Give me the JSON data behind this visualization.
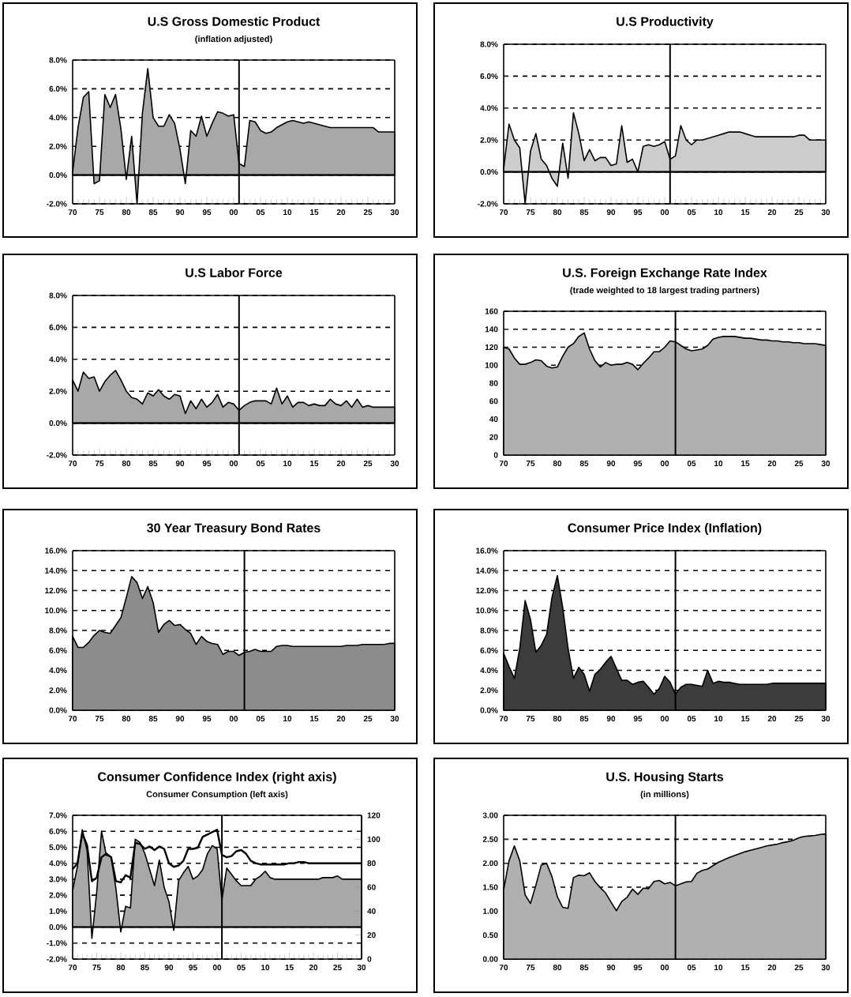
{
  "chart_data": [
    {
      "type": "area",
      "title": "U.S Gross Domestic Product",
      "subtitle": "(inflation adjusted)",
      "x": [
        1970,
        1971,
        1972,
        1973,
        1974,
        1975,
        1976,
        1977,
        1978,
        1979,
        1980,
        1981,
        1982,
        1983,
        1984,
        1985,
        1986,
        1987,
        1988,
        1989,
        1990,
        1991,
        1992,
        1993,
        1994,
        1995,
        1996,
        1997,
        1998,
        1999,
        2000,
        2001,
        2002,
        2003,
        2004,
        2005,
        2006,
        2007,
        2008,
        2009,
        2010,
        2011,
        2012,
        2013,
        2014,
        2015,
        2016,
        2017,
        2018,
        2019,
        2020,
        2021,
        2022,
        2023,
        2024,
        2025,
        2026,
        2027,
        2028,
        2029,
        2030
      ],
      "series": [
        {
          "color": "#a8a8a8",
          "values": [
            0.2,
            3.3,
            5.4,
            5.8,
            -0.6,
            -0.4,
            5.6,
            4.7,
            5.6,
            3.2,
            -0.3,
            2.7,
            -2.0,
            4.3,
            7.4,
            4.0,
            3.4,
            3.4,
            4.2,
            3.6,
            1.8,
            -0.6,
            3.1,
            2.7,
            4.1,
            2.7,
            3.6,
            4.4,
            4.3,
            4.1,
            4.2,
            0.8,
            0.6,
            3.8,
            3.7,
            3.1,
            2.9,
            3.0,
            3.3,
            3.5,
            3.7,
            3.8,
            3.7,
            3.6,
            3.7,
            3.6,
            3.5,
            3.4,
            3.3,
            3.3,
            3.3,
            3.3,
            3.3,
            3.3,
            3.3,
            3.3,
            3.3,
            3.0,
            3.0,
            3.0,
            3.0
          ]
        }
      ],
      "xlim": [
        1970,
        2030
      ],
      "ylim": [
        -2,
        8
      ],
      "xticks": [
        {
          "value": 1970,
          "label": "70"
        },
        {
          "value": 1975,
          "label": "75"
        },
        {
          "value": 1980,
          "label": "80"
        },
        {
          "value": 1985,
          "label": "85"
        },
        {
          "value": 1990,
          "label": "90"
        },
        {
          "value": 1995,
          "label": "95"
        },
        {
          "value": 2000,
          "label": "00"
        },
        {
          "value": 2005,
          "label": "05"
        },
        {
          "value": 2010,
          "label": "10"
        },
        {
          "value": 2015,
          "label": "15"
        },
        {
          "value": 2020,
          "label": "20"
        },
        {
          "value": 2025,
          "label": "25"
        },
        {
          "value": 2030,
          "label": "30"
        }
      ],
      "yticks": [
        {
          "value": -2,
          "label": "-2.0%"
        },
        {
          "value": 0,
          "label": "0.0%"
        },
        {
          "value": 2,
          "label": "2.0%"
        },
        {
          "value": 4,
          "label": "4.0%"
        },
        {
          "value": 6,
          "label": "6.0%"
        },
        {
          "value": 8,
          "label": "8.0%"
        }
      ],
      "grid": "y",
      "ref_lines": [
        {
          "axis": "x",
          "value": 2001
        }
      ]
    },
    {
      "type": "area",
      "title": "U.S Productivity",
      "x": [
        1970,
        1971,
        1972,
        1973,
        1974,
        1975,
        1976,
        1977,
        1978,
        1979,
        1980,
        1981,
        1982,
        1983,
        1984,
        1985,
        1986,
        1987,
        1988,
        1989,
        1990,
        1991,
        1992,
        1993,
        1994,
        1995,
        1996,
        1997,
        1998,
        1999,
        2000,
        2001,
        2002,
        2003,
        2004,
        2005,
        2006,
        2007,
        2008,
        2009,
        2010,
        2011,
        2012,
        2013,
        2014,
        2015,
        2016,
        2017,
        2018,
        2019,
        2020,
        2021,
        2022,
        2023,
        2024,
        2025,
        2026,
        2027,
        2028,
        2029,
        2030
      ],
      "series": [
        {
          "color": "#cccccc",
          "values": [
            0.2,
            3.0,
            2.0,
            1.5,
            -2.0,
            1.3,
            2.4,
            0.8,
            0.4,
            -0.4,
            -0.9,
            1.8,
            -0.4,
            3.7,
            2.4,
            0.7,
            1.4,
            0.7,
            0.9,
            0.9,
            0.4,
            0.5,
            2.9,
            0.6,
            0.8,
            0.0,
            1.6,
            1.7,
            1.6,
            1.7,
            1.9,
            0.8,
            1.0,
            2.9,
            2.0,
            1.7,
            2.0,
            2.0,
            2.1,
            2.2,
            2.3,
            2.4,
            2.5,
            2.5,
            2.5,
            2.4,
            2.3,
            2.2,
            2.2,
            2.2,
            2.2,
            2.2,
            2.2,
            2.2,
            2.2,
            2.3,
            2.3,
            2.0,
            2.0,
            2.0,
            2.0
          ]
        }
      ],
      "xlim": [
        1970,
        2030
      ],
      "ylim": [
        -2,
        8
      ],
      "xticks": [
        {
          "value": 1970,
          "label": "70"
        },
        {
          "value": 1975,
          "label": "75"
        },
        {
          "value": 1980,
          "label": "80"
        },
        {
          "value": 1985,
          "label": "85"
        },
        {
          "value": 1990,
          "label": "90"
        },
        {
          "value": 1995,
          "label": "95"
        },
        {
          "value": 2000,
          "label": "00"
        },
        {
          "value": 2005,
          "label": "05"
        },
        {
          "value": 2010,
          "label": "10"
        },
        {
          "value": 2015,
          "label": "15"
        },
        {
          "value": 2020,
          "label": "20"
        },
        {
          "value": 2025,
          "label": "25"
        },
        {
          "value": 2030,
          "label": "30"
        }
      ],
      "yticks": [
        {
          "value": -2,
          "label": "-2.0%"
        },
        {
          "value": 0,
          "label": "0.0%"
        },
        {
          "value": 2,
          "label": "2.0%"
        },
        {
          "value": 4,
          "label": "4.0%"
        },
        {
          "value": 6,
          "label": "6.0%"
        },
        {
          "value": 8,
          "label": "8.0%"
        }
      ],
      "grid": "y",
      "ref_lines": [
        {
          "axis": "x",
          "value": 2001
        }
      ]
    },
    {
      "type": "area",
      "title": "U.S Labor Force",
      "x": [
        1970,
        1971,
        1972,
        1973,
        1974,
        1975,
        1976,
        1977,
        1978,
        1979,
        1980,
        1981,
        1982,
        1983,
        1984,
        1985,
        1986,
        1987,
        1988,
        1989,
        1990,
        1991,
        1992,
        1993,
        1994,
        1995,
        1996,
        1997,
        1998,
        1999,
        2000,
        2001,
        2002,
        2003,
        2004,
        2005,
        2006,
        2007,
        2008,
        2009,
        2010,
        2011,
        2012,
        2013,
        2014,
        2015,
        2016,
        2017,
        2018,
        2019,
        2020,
        2021,
        2022,
        2023,
        2024,
        2025,
        2026,
        2027,
        2028,
        2029,
        2030
      ],
      "series": [
        {
          "color": "#a8a8a8",
          "values": [
            2.7,
            2.0,
            3.2,
            2.8,
            2.9,
            2.0,
            2.6,
            3.0,
            3.3,
            2.7,
            2.0,
            1.6,
            1.5,
            1.2,
            1.9,
            1.7,
            2.1,
            1.7,
            1.5,
            1.8,
            1.7,
            0.6,
            1.4,
            0.9,
            1.5,
            1.0,
            1.3,
            1.8,
            1.0,
            1.3,
            1.2,
            0.8,
            1.1,
            1.3,
            1.4,
            1.4,
            1.4,
            1.2,
            2.2,
            1.2,
            1.7,
            1.0,
            1.3,
            1.3,
            1.1,
            1.2,
            1.1,
            1.1,
            1.5,
            1.2,
            1.1,
            1.4,
            1.0,
            1.5,
            1.0,
            1.1,
            1.0,
            1.0,
            1.0,
            1.0,
            1.0
          ]
        }
      ],
      "xlim": [
        1970,
        2030
      ],
      "ylim": [
        -2,
        8
      ],
      "xticks": [
        {
          "value": 1970,
          "label": "70"
        },
        {
          "value": 1975,
          "label": "75"
        },
        {
          "value": 1980,
          "label": "80"
        },
        {
          "value": 1985,
          "label": "85"
        },
        {
          "value": 1990,
          "label": "90"
        },
        {
          "value": 1995,
          "label": "95"
        },
        {
          "value": 2000,
          "label": "00"
        },
        {
          "value": 2005,
          "label": "05"
        },
        {
          "value": 2010,
          "label": "10"
        },
        {
          "value": 2015,
          "label": "15"
        },
        {
          "value": 2020,
          "label": "20"
        },
        {
          "value": 2025,
          "label": "25"
        },
        {
          "value": 2030,
          "label": "30"
        }
      ],
      "yticks": [
        {
          "value": -2,
          "label": "-2.0%"
        },
        {
          "value": 0,
          "label": "0.0%"
        },
        {
          "value": 2,
          "label": "2.0%"
        },
        {
          "value": 4,
          "label": "4.0%"
        },
        {
          "value": 6,
          "label": "6.0%"
        },
        {
          "value": 8,
          "label": "8.0%"
        }
      ],
      "grid": "y",
      "ref_lines": [
        {
          "axis": "x",
          "value": 2001
        }
      ]
    },
    {
      "type": "area",
      "title": "U.S. Foreign Exchange Rate Index",
      "subtitle": "(trade weighted to 18 largest trading partners)",
      "x": [
        1970,
        1971,
        1972,
        1973,
        1974,
        1975,
        1976,
        1977,
        1978,
        1979,
        1980,
        1981,
        1982,
        1983,
        1984,
        1985,
        1986,
        1987,
        1988,
        1989,
        1990,
        1991,
        1992,
        1993,
        1994,
        1995,
        1996,
        1997,
        1998,
        1999,
        2000,
        2001,
        2002,
        2003,
        2004,
        2005,
        2006,
        2007,
        2008,
        2009,
        2010,
        2011,
        2012,
        2013,
        2014,
        2015,
        2016,
        2017,
        2018,
        2019,
        2020,
        2021,
        2022,
        2023,
        2024,
        2025,
        2026,
        2027,
        2028,
        2029,
        2030
      ],
      "series": [
        {
          "color": "#b0b0b0",
          "values": [
            120,
            118,
            108,
            101,
            101,
            103,
            106,
            105,
            99,
            97,
            98,
            110,
            120,
            124,
            132,
            136,
            118,
            105,
            98,
            103,
            100,
            101,
            101,
            103,
            101,
            95,
            102,
            108,
            115,
            115,
            120,
            127,
            126,
            122,
            118,
            116,
            117,
            118,
            122,
            129,
            131,
            132,
            132,
            132,
            131,
            130,
            130,
            129,
            128,
            128,
            127,
            127,
            126,
            126,
            125,
            125,
            124,
            124,
            124,
            123,
            122
          ]
        }
      ],
      "xlim": [
        1970,
        2030
      ],
      "ylim": [
        0,
        160
      ],
      "xticks": [
        {
          "value": 1970,
          "label": "70"
        },
        {
          "value": 1975,
          "label": "75"
        },
        {
          "value": 1980,
          "label": "80"
        },
        {
          "value": 1985,
          "label": "85"
        },
        {
          "value": 1990,
          "label": "90"
        },
        {
          "value": 1995,
          "label": "95"
        },
        {
          "value": 2000,
          "label": "00"
        },
        {
          "value": 2005,
          "label": "05"
        },
        {
          "value": 2010,
          "label": "10"
        },
        {
          "value": 2015,
          "label": "15"
        },
        {
          "value": 2020,
          "label": "20"
        },
        {
          "value": 2025,
          "label": "25"
        },
        {
          "value": 2030,
          "label": "30"
        }
      ],
      "yticks": [
        0,
        20,
        40,
        60,
        80,
        100,
        120,
        140,
        160
      ],
      "grid": "y",
      "ref_lines": [
        {
          "axis": "x",
          "value": 2002
        }
      ]
    },
    {
      "type": "area",
      "title": "30 Year Treasury Bond Rates",
      "x": [
        1970,
        1971,
        1972,
        1973,
        1974,
        1975,
        1976,
        1977,
        1978,
        1979,
        1980,
        1981,
        1982,
        1983,
        1984,
        1985,
        1986,
        1987,
        1988,
        1989,
        1990,
        1991,
        1992,
        1993,
        1994,
        1995,
        1996,
        1997,
        1998,
        1999,
        2000,
        2001,
        2002,
        2003,
        2004,
        2005,
        2006,
        2007,
        2008,
        2009,
        2010,
        2011,
        2012,
        2013,
        2014,
        2015,
        2016,
        2017,
        2018,
        2019,
        2020,
        2021,
        2022,
        2023,
        2024,
        2025,
        2026,
        2027,
        2028,
        2029,
        2030
      ],
      "series": [
        {
          "color": "#8c8c8c",
          "values": [
            7.4,
            6.3,
            6.3,
            6.8,
            7.5,
            8.0,
            7.8,
            7.7,
            8.5,
            9.3,
            11.3,
            13.4,
            12.8,
            11.2,
            12.4,
            10.8,
            7.8,
            8.6,
            9.0,
            8.5,
            8.6,
            8.1,
            7.7,
            6.6,
            7.4,
            6.9,
            6.7,
            6.6,
            5.6,
            5.9,
            5.9,
            5.5,
            5.8,
            5.9,
            6.1,
            5.9,
            5.9,
            5.9,
            6.4,
            6.5,
            6.5,
            6.4,
            6.4,
            6.4,
            6.4,
            6.4,
            6.4,
            6.4,
            6.4,
            6.4,
            6.4,
            6.5,
            6.5,
            6.5,
            6.6,
            6.6,
            6.6,
            6.6,
            6.6,
            6.7,
            6.7
          ]
        }
      ],
      "xlim": [
        1970,
        2030
      ],
      "ylim": [
        0,
        16
      ],
      "xticks": [
        {
          "value": 1970,
          "label": "70"
        },
        {
          "value": 1975,
          "label": "75"
        },
        {
          "value": 1980,
          "label": "80"
        },
        {
          "value": 1985,
          "label": "85"
        },
        {
          "value": 1990,
          "label": "90"
        },
        {
          "value": 1995,
          "label": "95"
        },
        {
          "value": 2000,
          "label": "00"
        },
        {
          "value": 2005,
          "label": "05"
        },
        {
          "value": 2010,
          "label": "10"
        },
        {
          "value": 2015,
          "label": "15"
        },
        {
          "value": 2020,
          "label": "20"
        },
        {
          "value": 2025,
          "label": "25"
        },
        {
          "value": 2030,
          "label": "30"
        }
      ],
      "yticks": [
        {
          "value": 0,
          "label": "0.0%"
        },
        {
          "value": 2,
          "label": "2.0%"
        },
        {
          "value": 4,
          "label": "4.0%"
        },
        {
          "value": 6,
          "label": "6.0%"
        },
        {
          "value": 8,
          "label": "8.0%"
        },
        {
          "value": 10,
          "label": "10.0%"
        },
        {
          "value": 12,
          "label": "12.0%"
        },
        {
          "value": 14,
          "label": "14.0%"
        },
        {
          "value": 16,
          "label": "16.0%"
        }
      ],
      "grid": "y",
      "ref_lines": [
        {
          "axis": "x",
          "value": 2002
        }
      ]
    },
    {
      "type": "area",
      "title": "Consumer Price Index (Inflation)",
      "x": [
        1970,
        1971,
        1972,
        1973,
        1974,
        1975,
        1976,
        1977,
        1978,
        1979,
        1980,
        1981,
        1982,
        1983,
        1984,
        1985,
        1986,
        1987,
        1988,
        1989,
        1990,
        1991,
        1992,
        1993,
        1994,
        1995,
        1996,
        1997,
        1998,
        1999,
        2000,
        2001,
        2002,
        2003,
        2004,
        2005,
        2006,
        2007,
        2008,
        2009,
        2010,
        2011,
        2012,
        2013,
        2014,
        2015,
        2016,
        2017,
        2018,
        2019,
        2020,
        2021,
        2022,
        2023,
        2024,
        2025,
        2026,
        2027,
        2028,
        2029,
        2030
      ],
      "series": [
        {
          "color": "#3c3c3c",
          "values": [
            5.7,
            4.4,
            3.2,
            6.2,
            11.0,
            9.1,
            5.8,
            6.5,
            7.6,
            11.3,
            13.5,
            10.3,
            6.2,
            3.2,
            4.3,
            3.6,
            1.9,
            3.6,
            4.1,
            4.8,
            5.4,
            4.2,
            3.0,
            3.0,
            2.6,
            2.8,
            2.9,
            2.3,
            1.6,
            2.2,
            3.4,
            2.8,
            1.6,
            2.3,
            2.6,
            2.6,
            2.5,
            2.4,
            4.0,
            2.7,
            2.9,
            2.8,
            2.8,
            2.7,
            2.6,
            2.6,
            2.6,
            2.6,
            2.6,
            2.6,
            2.7,
            2.7,
            2.7,
            2.7,
            2.7,
            2.7,
            2.7,
            2.7,
            2.7,
            2.7,
            2.7
          ]
        }
      ],
      "xlim": [
        1970,
        2030
      ],
      "ylim": [
        0,
        16
      ],
      "xticks": [
        {
          "value": 1970,
          "label": "70"
        },
        {
          "value": 1975,
          "label": "75"
        },
        {
          "value": 1980,
          "label": "80"
        },
        {
          "value": 1985,
          "label": "85"
        },
        {
          "value": 1990,
          "label": "90"
        },
        {
          "value": 1995,
          "label": "95"
        },
        {
          "value": 2000,
          "label": "00"
        },
        {
          "value": 2005,
          "label": "05"
        },
        {
          "value": 2010,
          "label": "10"
        },
        {
          "value": 2015,
          "label": "15"
        },
        {
          "value": 2020,
          "label": "20"
        },
        {
          "value": 2025,
          "label": "25"
        },
        {
          "value": 2030,
          "label": "30"
        }
      ],
      "yticks": [
        {
          "value": 0,
          "label": "0.0%"
        },
        {
          "value": 2,
          "label": "2.0%"
        },
        {
          "value": 4,
          "label": "4.0%"
        },
        {
          "value": 6,
          "label": "6.0%"
        },
        {
          "value": 8,
          "label": "8.0%"
        },
        {
          "value": 10,
          "label": "10.0%"
        },
        {
          "value": 12,
          "label": "12.0%"
        },
        {
          "value": 14,
          "label": "14.0%"
        },
        {
          "value": 16,
          "label": "16.0%"
        }
      ],
      "grid": "y",
      "ref_lines": [
        {
          "axis": "x",
          "value": 2002
        }
      ]
    },
    {
      "type": "area",
      "title": "Consumer Confidence Index (right axis)",
      "subtitle": "Consumer Consumption (left axis)",
      "x": [
        1970,
        1971,
        1972,
        1973,
        1974,
        1975,
        1976,
        1977,
        1978,
        1979,
        1980,
        1981,
        1982,
        1983,
        1984,
        1985,
        1986,
        1987,
        1988,
        1989,
        1990,
        1991,
        1992,
        1993,
        1994,
        1995,
        1996,
        1997,
        1998,
        1999,
        2000,
        2001,
        2002,
        2003,
        2004,
        2005,
        2006,
        2007,
        2008,
        2009,
        2010,
        2011,
        2012,
        2013,
        2014,
        2015,
        2016,
        2017,
        2018,
        2019,
        2020,
        2021,
        2022,
        2023,
        2024,
        2025,
        2026,
        2027,
        2028,
        2029,
        2030
      ],
      "series": [
        {
          "color": "#a8a8a8",
          "values": [
            2.3,
            3.8,
            6.1,
            4.8,
            -0.7,
            2.2,
            6.0,
            4.5,
            4.4,
            2.4,
            -0.3,
            1.3,
            1.2,
            5.5,
            5.3,
            4.6,
            3.6,
            2.6,
            4.2,
            2.5,
            1.6,
            -0.2,
            2.9,
            3.4,
            3.8,
            3.0,
            3.2,
            3.6,
            4.6,
            5.1,
            4.9,
            1.7,
            3.7,
            3.3,
            2.9,
            2.6,
            2.6,
            2.6,
            3.0,
            3.2,
            3.5,
            3.1,
            3.0,
            3.0,
            3.0,
            3.0,
            3.0,
            3.0,
            3.0,
            3.0,
            3.0,
            3.0,
            3.1,
            3.1,
            3.1,
            3.2,
            3.0,
            3.0,
            3.0,
            3.0,
            3.0
          ]
        },
        {
          "type": "line",
          "axis": "y2",
          "color": "#000000",
          "values": [
            75,
            80,
            105,
            95,
            65,
            68,
            85,
            88,
            85,
            65,
            64,
            70,
            68,
            97,
            96,
            92,
            94,
            91,
            94,
            92,
            80,
            77,
            78,
            82,
            92,
            92,
            93,
            102,
            104,
            106,
            108,
            87,
            85,
            86,
            90,
            91,
            88,
            82,
            80,
            79,
            79,
            79,
            79,
            79,
            79,
            80,
            80,
            81,
            81,
            80,
            80,
            80,
            80,
            80,
            80,
            80,
            80,
            80,
            80,
            80,
            80
          ]
        }
      ],
      "xlim": [
        1970,
        2030
      ],
      "ylim": [
        -2,
        7
      ],
      "y2lim": [
        0,
        120
      ],
      "xticks": [
        {
          "value": 1970,
          "label": "70"
        },
        {
          "value": 1975,
          "label": "75"
        },
        {
          "value": 1980,
          "label": "80"
        },
        {
          "value": 1985,
          "label": "85"
        },
        {
          "value": 1990,
          "label": "90"
        },
        {
          "value": 1995,
          "label": "95"
        },
        {
          "value": 2000,
          "label": "00"
        },
        {
          "value": 2005,
          "label": "05"
        },
        {
          "value": 2010,
          "label": "10"
        },
        {
          "value": 2015,
          "label": "15"
        },
        {
          "value": 2020,
          "label": "20"
        },
        {
          "value": 2025,
          "label": "25"
        },
        {
          "value": 2030,
          "label": "30"
        }
      ],
      "yticks": [
        {
          "value": -2,
          "label": "-2.0%"
        },
        {
          "value": -1,
          "label": "-1.0%"
        },
        {
          "value": 0,
          "label": "0.0%"
        },
        {
          "value": 1,
          "label": "1.0%"
        },
        {
          "value": 2,
          "label": "2.0%"
        },
        {
          "value": 3,
          "label": "3.0%"
        },
        {
          "value": 4,
          "label": "4.0%"
        },
        {
          "value": 5,
          "label": "5.0%"
        },
        {
          "value": 6,
          "label": "6.0%"
        },
        {
          "value": 7,
          "label": "7.0%"
        }
      ],
      "y2ticks": [
        0,
        20,
        40,
        60,
        80,
        100,
        120
      ],
      "grid": "y",
      "ref_lines": [
        {
          "axis": "x",
          "value": 2001
        }
      ]
    },
    {
      "type": "area",
      "title": "U.S. Housing Starts",
      "subtitle": "(in millions)",
      "x": [
        1970,
        1971,
        1972,
        1973,
        1974,
        1975,
        1976,
        1977,
        1978,
        1979,
        1980,
        1981,
        1982,
        1983,
        1984,
        1985,
        1986,
        1987,
        1988,
        1989,
        1990,
        1991,
        1992,
        1993,
        1994,
        1995,
        1996,
        1997,
        1998,
        1999,
        2000,
        2001,
        2002,
        2003,
        2004,
        2005,
        2006,
        2007,
        2008,
        2009,
        2010,
        2011,
        2012,
        2013,
        2014,
        2015,
        2016,
        2017,
        2018,
        2019,
        2020,
        2021,
        2022,
        2023,
        2024,
        2025,
        2026,
        2027,
        2028,
        2029,
        2030
      ],
      "series": [
        {
          "color": "#b0b0b0",
          "values": [
            1.45,
            2.05,
            2.36,
            2.05,
            1.34,
            1.16,
            1.54,
            1.96,
            2.0,
            1.72,
            1.3,
            1.08,
            1.06,
            1.7,
            1.75,
            1.74,
            1.8,
            1.62,
            1.49,
            1.38,
            1.19,
            1.01,
            1.2,
            1.29,
            1.46,
            1.35,
            1.48,
            1.47,
            1.62,
            1.64,
            1.57,
            1.6,
            1.53,
            1.57,
            1.61,
            1.62,
            1.79,
            1.85,
            1.88,
            1.95,
            2.02,
            2.07,
            2.12,
            2.16,
            2.2,
            2.24,
            2.27,
            2.3,
            2.33,
            2.36,
            2.38,
            2.4,
            2.43,
            2.45,
            2.48,
            2.53,
            2.56,
            2.57,
            2.58,
            2.6,
            2.61
          ]
        }
      ],
      "xlim": [
        1970,
        2030
      ],
      "ylim": [
        0,
        3
      ],
      "xticks": [
        {
          "value": 1970,
          "label": "70"
        },
        {
          "value": 1975,
          "label": "75"
        },
        {
          "value": 1980,
          "label": "80"
        },
        {
          "value": 1985,
          "label": "85"
        },
        {
          "value": 1990,
          "label": "90"
        },
        {
          "value": 1995,
          "label": "95"
        },
        {
          "value": 2000,
          "label": "00"
        },
        {
          "value": 2005,
          "label": "05"
        },
        {
          "value": 2010,
          "label": "10"
        },
        {
          "value": 2015,
          "label": "15"
        },
        {
          "value": 2020,
          "label": "20"
        },
        {
          "value": 2025,
          "label": "25"
        },
        {
          "value": 2030,
          "label": "30"
        }
      ],
      "yticks": [
        {
          "value": 0,
          "label": "0.00"
        },
        {
          "value": 0.5,
          "label": "0.50"
        },
        {
          "value": 1,
          "label": "1.00"
        },
        {
          "value": 1.5,
          "label": "1.50"
        },
        {
          "value": 2,
          "label": "2.00"
        },
        {
          "value": 2.5,
          "label": "2.50"
        },
        {
          "value": 3,
          "label": "3.00"
        }
      ],
      "grid": "y",
      "ref_lines": [
        {
          "axis": "x",
          "value": 2002
        }
      ]
    }
  ]
}
